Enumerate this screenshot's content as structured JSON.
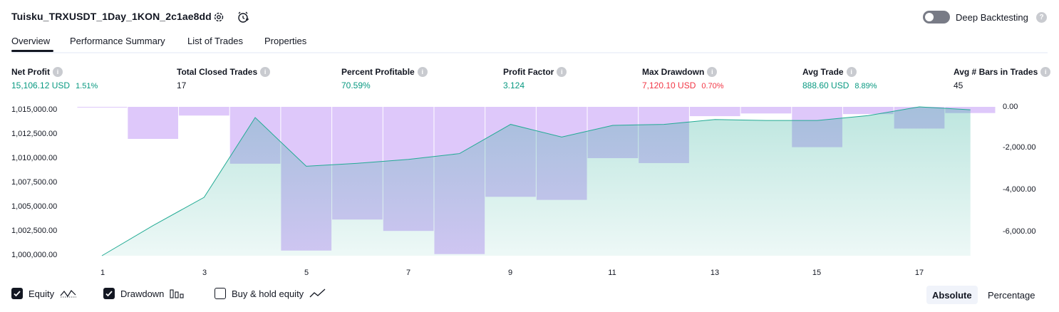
{
  "header": {
    "title": "Tuisku_TRXUSDT_1Day_1KON_2c1ae8dd",
    "settings_icon": "gear-icon",
    "alert_icon": "alarm-clock-icon",
    "deep_backtesting_label": "Deep Backtesting",
    "deep_backtesting_on": false,
    "help_glyph": "?"
  },
  "tabs": [
    {
      "label": "Overview",
      "active": true
    },
    {
      "label": "Performance Summary",
      "active": false
    },
    {
      "label": "List of Trades",
      "active": false
    },
    {
      "label": "Properties",
      "active": false
    }
  ],
  "metrics": {
    "info_glyph": "i",
    "net_profit": {
      "label": "Net Profit",
      "value": "15,106.12 USD",
      "pct": "1.51%"
    },
    "total_closed_trades": {
      "label": "Total Closed Trades",
      "value": "17"
    },
    "percent_profitable": {
      "label": "Percent Profitable",
      "value": "70.59%"
    },
    "profit_factor": {
      "label": "Profit Factor",
      "value": "3.124"
    },
    "max_drawdown": {
      "label": "Max Drawdown",
      "value": "7,120.10 USD",
      "pct": "0.70%"
    },
    "avg_trade": {
      "label": "Avg Trade",
      "value": "888.60 USD",
      "pct": "8.89%"
    },
    "avg_bars": {
      "label": "Avg # Bars in Trades",
      "value": "45"
    }
  },
  "colors": {
    "positive": "#089981",
    "negative": "#f23645",
    "equity_line": "#22ab94",
    "drawdown_fill": "#c9a6f7"
  },
  "chart_data": {
    "type": "area",
    "x": [
      1,
      2,
      3,
      4,
      5,
      6,
      7,
      8,
      9,
      10,
      11,
      12,
      13,
      14,
      15,
      16,
      17,
      18
    ],
    "x_tick_labels": [
      "1",
      "3",
      "5",
      "7",
      "9",
      "11",
      "13",
      "15",
      "17"
    ],
    "y_left_ticks": [
      "1,015,000.00",
      "1,012,500.00",
      "1,010,000.00",
      "1,007,500.00",
      "1,005,000.00",
      "1,002,500.00",
      "1,000,000.00"
    ],
    "y_right_ticks": [
      "0.00",
      "-2,000.00",
      "-4,000.00",
      "-6,000.00"
    ],
    "ylim_left": [
      1000000,
      1015300
    ],
    "ylim_right": [
      -7200,
      0
    ],
    "series": [
      {
        "name": "Equity",
        "kind": "line-area",
        "values": [
          1000000,
          1003100,
          1006000,
          1014200,
          1009200,
          1009500,
          1009900,
          1010500,
          1013500,
          1012200,
          1013400,
          1013500,
          1014000,
          1013900,
          1013900,
          1014400,
          1015300,
          1015000
        ]
      },
      {
        "name": "Drawdown",
        "kind": "bars",
        "values": [
          -30,
          -1550,
          -420,
          -2750,
          -6950,
          -5450,
          -6000,
          -7120,
          -4350,
          -4500,
          -2480,
          -2720,
          -450,
          -320,
          -1950,
          -350,
          -1050,
          -300
        ]
      }
    ],
    "grid": false
  },
  "legend": {
    "items": [
      {
        "label": "Equity",
        "checked": true,
        "icon": "equity-wave-icon"
      },
      {
        "label": "Drawdown",
        "checked": true,
        "icon": "drawdown-bars-icon"
      },
      {
        "label": "Buy & hold equity",
        "checked": false,
        "icon": "buy-hold-line-icon"
      }
    ],
    "modes": [
      {
        "label": "Absolute",
        "active": true
      },
      {
        "label": "Percentage",
        "active": false
      }
    ]
  }
}
